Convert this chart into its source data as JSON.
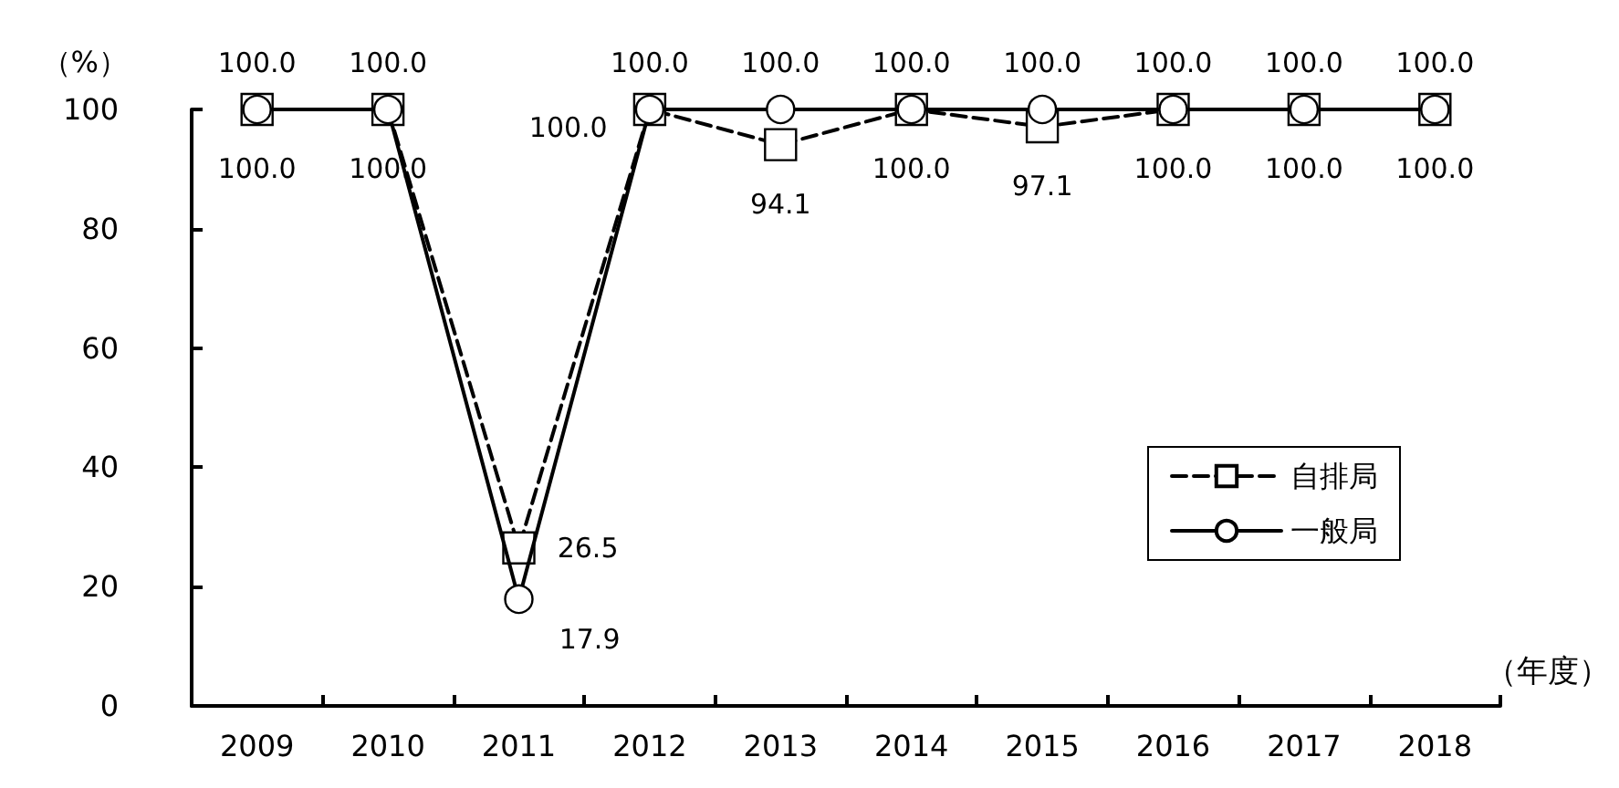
{
  "chart_data": {
    "type": "line",
    "xlabel": "（年度）",
    "ylabel": "（%）",
    "categories": [
      "2009",
      "2010",
      "2011",
      "2012",
      "2013",
      "2014",
      "2015",
      "2016",
      "2017",
      "2018"
    ],
    "series": [
      {
        "name": "自排局",
        "color": "#000000",
        "line_style": "dashed",
        "marker": "square",
        "values": [
          100,
          100,
          26.5,
          100,
          94.1,
          100,
          97.1,
          100,
          100,
          100
        ],
        "value_labels": [
          "100.0",
          "100.0",
          "26.5",
          "100.0",
          "94.1",
          "100.0",
          "97.1",
          "100.0",
          "100.0",
          "100.0"
        ]
      },
      {
        "name": "一般局",
        "color": "#000000",
        "line_style": "solid",
        "marker": "circle",
        "values": [
          100,
          100,
          17.9,
          100,
          100,
          100,
          100,
          100,
          100,
          100
        ],
        "value_labels": [
          "100.0",
          "100.0",
          "17.9",
          "100.0",
          "100.0",
          "100.0",
          "100.0",
          "100.0",
          "100.0",
          "100.0"
        ]
      }
    ],
    "ylim": [
      0,
      100
    ],
    "yticks": [
      0,
      20,
      40,
      60,
      80,
      100
    ],
    "grid": false,
    "legend": "right"
  }
}
